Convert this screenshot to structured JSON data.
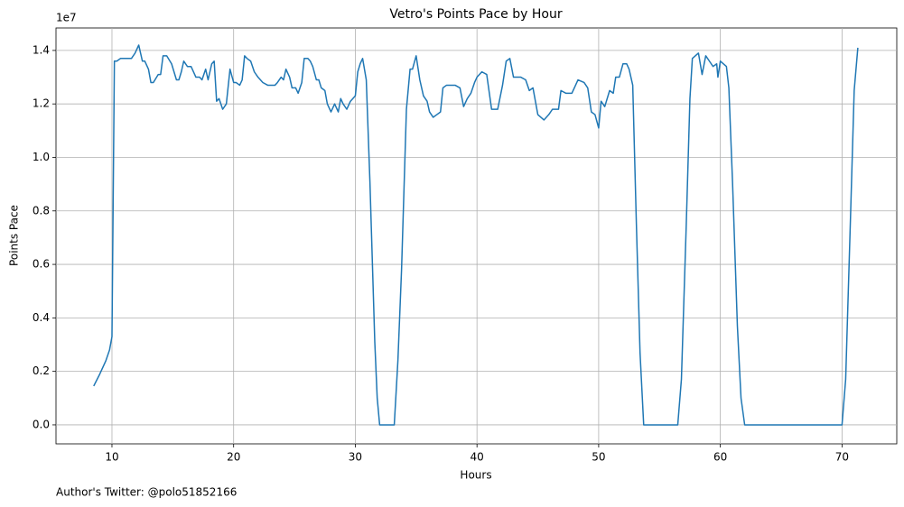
{
  "chart_data": {
    "type": "line",
    "title": "Vetro's Points Pace by Hour",
    "x_label": "Hours",
    "y_label": "Points Pace",
    "y_offset_label": "1e7",
    "footnote": "Author's Twitter: @polo51852166",
    "grid": true,
    "xlim": [
      5.4,
      74.5
    ],
    "xticks": [
      10,
      20,
      30,
      40,
      50,
      60,
      70
    ],
    "ylim": [
      -0.071,
      1.484
    ],
    "yticks": [
      {
        "value": 0,
        "label": "0.0"
      },
      {
        "value": 0.2,
        "label": "0.2"
      },
      {
        "value": 0.4,
        "label": "0.4"
      },
      {
        "value": 0.6,
        "label": "0.6"
      },
      {
        "value": 0.8,
        "label": "0.8"
      },
      {
        "value": 1,
        "label": "1.0"
      },
      {
        "value": 1.2,
        "label": "1.2"
      },
      {
        "value": 1.4,
        "label": "1.4"
      }
    ],
    "series": [
      {
        "name": "Points Pace",
        "color": "#1f77b4",
        "x": [
          8.5,
          9,
          9.5,
          9.8,
          10,
          10.2,
          10.4,
          10.7,
          11.1,
          11.6,
          11.9,
          12.2,
          12.5,
          12.7,
          13,
          13.2,
          13.4,
          13.8,
          14,
          14.2,
          14.5,
          14.9,
          15.3,
          15.5,
          15.7,
          15.9,
          16.2,
          16.5,
          16.9,
          17.2,
          17.4,
          17.7,
          17.9,
          18.2,
          18.4,
          18.6,
          18.8,
          19.1,
          19.4,
          19.7,
          20,
          20.2,
          20.5,
          20.7,
          20.9,
          21.1,
          21.4,
          21.7,
          22,
          22.4,
          22.8,
          23.1,
          23.4,
          23.6,
          23.9,
          24.1,
          24.3,
          24.6,
          24.8,
          25.1,
          25.3,
          25.6,
          25.8,
          26.1,
          26.3,
          26.5,
          26.8,
          27,
          27.2,
          27.5,
          27.7,
          28,
          28.3,
          28.6,
          28.8,
          29,
          29.3,
          29.6,
          30,
          30.2,
          30.4,
          30.6,
          30.9,
          31.2,
          31.6,
          31.8,
          32,
          33.2,
          33.5,
          33.8,
          34.2,
          34.5,
          34.7,
          35,
          35.3,
          35.6,
          35.9,
          36.1,
          36.4,
          36.7,
          37,
          37.2,
          37.5,
          37.9,
          38.2,
          38.6,
          38.9,
          39.2,
          39.5,
          39.8,
          40,
          40.4,
          40.8,
          41.2,
          41.7,
          42.1,
          42.4,
          42.7,
          43,
          43.6,
          44,
          44.3,
          44.6,
          45,
          45.5,
          45.9,
          46.2,
          46.7,
          46.9,
          47.3,
          47.8,
          48.3,
          48.8,
          49.1,
          49.4,
          49.7,
          50,
          50.2,
          50.5,
          50.9,
          51.2,
          51.4,
          51.7,
          52,
          52.3,
          52.5,
          52.8,
          53.1,
          53.4,
          53.7,
          56.5,
          56.8,
          57.2,
          57.5,
          57.7,
          58.2,
          58.5,
          58.8,
          59.1,
          59.4,
          59.7,
          59.8,
          60,
          60.5,
          60.7,
          61,
          61.4,
          61.7,
          62,
          70,
          70.3,
          70.7,
          71,
          71.3
        ],
        "values": [
          0.145,
          0.19,
          0.24,
          0.28,
          0.33,
          1.36,
          1.36,
          1.37,
          1.37,
          1.37,
          1.39,
          1.42,
          1.36,
          1.36,
          1.33,
          1.28,
          1.28,
          1.31,
          1.31,
          1.38,
          1.38,
          1.35,
          1.29,
          1.29,
          1.32,
          1.36,
          1.34,
          1.34,
          1.3,
          1.3,
          1.29,
          1.33,
          1.29,
          1.35,
          1.36,
          1.21,
          1.22,
          1.18,
          1.2,
          1.33,
          1.28,
          1.28,
          1.27,
          1.29,
          1.38,
          1.37,
          1.36,
          1.32,
          1.3,
          1.28,
          1.27,
          1.27,
          1.27,
          1.28,
          1.3,
          1.29,
          1.33,
          1.3,
          1.26,
          1.26,
          1.24,
          1.28,
          1.37,
          1.37,
          1.36,
          1.34,
          1.29,
          1.29,
          1.26,
          1.25,
          1.2,
          1.17,
          1.2,
          1.17,
          1.22,
          1.2,
          1.18,
          1.21,
          1.23,
          1.32,
          1.35,
          1.37,
          1.29,
          0.91,
          0.31,
          0.1,
          0,
          0,
          0.24,
          0.58,
          1.18,
          1.33,
          1.33,
          1.38,
          1.29,
          1.23,
          1.21,
          1.17,
          1.15,
          1.16,
          1.17,
          1.26,
          1.27,
          1.27,
          1.27,
          1.26,
          1.19,
          1.22,
          1.24,
          1.28,
          1.3,
          1.32,
          1.31,
          1.18,
          1.18,
          1.27,
          1.36,
          1.37,
          1.3,
          1.3,
          1.29,
          1.25,
          1.26,
          1.16,
          1.14,
          1.16,
          1.18,
          1.18,
          1.25,
          1.24,
          1.24,
          1.29,
          1.28,
          1.26,
          1.17,
          1.16,
          1.11,
          1.21,
          1.19,
          1.25,
          1.24,
          1.3,
          1.3,
          1.35,
          1.35,
          1.33,
          1.27,
          0.75,
          0.27,
          0,
          0,
          0.17,
          0.75,
          1.22,
          1.37,
          1.39,
          1.31,
          1.38,
          1.36,
          1.34,
          1.35,
          1.3,
          1.36,
          1.34,
          1.26,
          0.91,
          0.37,
          0.1,
          0,
          0,
          0.17,
          0.78,
          1.25,
          1.41
        ]
      }
    ]
  }
}
